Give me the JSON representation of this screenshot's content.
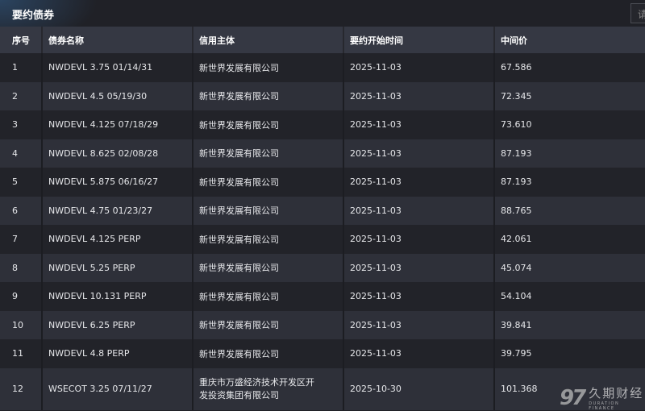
{
  "header": {
    "title": "要约债券",
    "search_placeholder": "请"
  },
  "table": {
    "columns": [
      "序号",
      "债券名称",
      "信用主体",
      "要约开始时间",
      "中间价"
    ],
    "rows": [
      [
        "1",
        "NWDEVL 3.75 01/14/31",
        "新世界发展有限公司",
        "2025-11-03",
        "67.586"
      ],
      [
        "2",
        "NWDEVL 4.5 05/19/30",
        "新世界发展有限公司",
        "2025-11-03",
        "72.345"
      ],
      [
        "3",
        "NWDEVL 4.125 07/18/29",
        "新世界发展有限公司",
        "2025-11-03",
        "73.610"
      ],
      [
        "4",
        "NWDEVL 8.625 02/08/28",
        "新世界发展有限公司",
        "2025-11-03",
        "87.193"
      ],
      [
        "5",
        "NWDEVL 5.875 06/16/27",
        "新世界发展有限公司",
        "2025-11-03",
        "87.193"
      ],
      [
        "6",
        "NWDEVL 4.75 01/23/27",
        "新世界发展有限公司",
        "2025-11-03",
        "88.765"
      ],
      [
        "7",
        "NWDEVL 4.125 PERP",
        "新世界发展有限公司",
        "2025-11-03",
        "42.061"
      ],
      [
        "8",
        "NWDEVL 5.25 PERP",
        "新世界发展有限公司",
        "2025-11-03",
        "45.074"
      ],
      [
        "9",
        "NWDEVL 10.131 PERP",
        "新世界发展有限公司",
        "2025-11-03",
        "54.104"
      ],
      [
        "10",
        "NWDEVL 6.25 PERP",
        "新世界发展有限公司",
        "2025-11-03",
        "39.841"
      ],
      [
        "11",
        "NWDEVL 4.8 PERP",
        "新世界发展有限公司",
        "2025-11-03",
        "39.795"
      ],
      [
        "12",
        "WSECOT 3.25 07/11/27",
        "重庆市万盛经济技术开发区开发投资集团有限公司",
        "2025-10-30",
        "101.368"
      ]
    ]
  },
  "watermark": {
    "mark": "97",
    "name_cn": "久期财经",
    "name_en": "DURATION FINANCE"
  }
}
